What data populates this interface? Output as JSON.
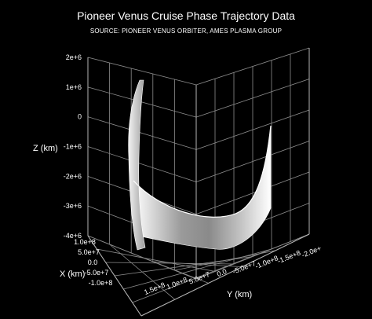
{
  "chart_data": {
    "type": "surface",
    "title": "Pioneer Venus Cruise Phase Trajectory Data",
    "subtitle": "SOURCE: PIONEER VENUS ORBITER, AMES PLASMA GROUP",
    "xlabel": "X (km)",
    "ylabel": "Y (km)",
    "zlabel": "Z (km)",
    "z_ticks": [
      "2e+6",
      "1e+6",
      "0",
      "-1e+6",
      "-2e+6",
      "-3e+6",
      "-4e+6"
    ],
    "x_ticks": [
      "1.0e+8",
      "5.0e+7",
      "0.0",
      "-5.0e+7",
      "-1.0e+8"
    ],
    "y_ticks": [
      "1.5e+8",
      "1.0e+8",
      "5.0e+7",
      "0.0",
      "-5.0e+7",
      "-1.0e+8",
      "-1.5e+8",
      "-2.0e+"
    ],
    "zlim": [
      -4000000,
      2000000
    ],
    "grid": true,
    "background": "#000000",
    "surface_color": "#e6e6e6"
  }
}
